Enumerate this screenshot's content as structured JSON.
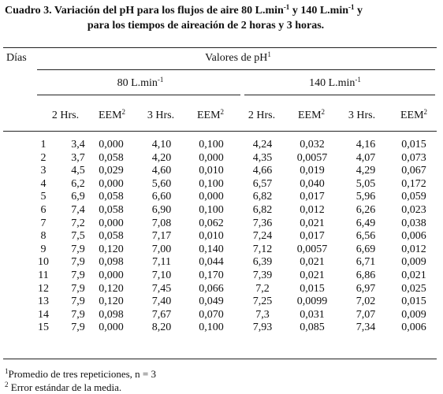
{
  "title": {
    "line1": [
      "Cuadro 3. Variación del pH para los flujos de aire 80 L.min",
      "-1",
      " y 140 L.min",
      "-1",
      " y"
    ],
    "line2": "para los tiempos de aireación de 2 horas y 3 horas."
  },
  "table": {
    "header": {
      "dias": "Días",
      "group": {
        "text": "Valores de pH",
        "sup": "1"
      },
      "subgroups": [
        {
          "text": "80 L.min",
          "sup": "-1"
        },
        {
          "text": "140 L.min",
          "sup": "-1"
        }
      ],
      "columns": [
        {
          "text": "2 Hrs."
        },
        {
          "text": "EEM",
          "sup": "2"
        },
        {
          "text": "3 Hrs."
        },
        {
          "text": "EEM",
          "sup": "2"
        },
        {
          "text": "2 Hrs."
        },
        {
          "text": "EEM",
          "sup": "2"
        },
        {
          "text": "3 Hrs."
        },
        {
          "text": "EEM",
          "sup": "2"
        }
      ]
    },
    "rows": [
      [
        "1",
        "3,4",
        "0,000",
        "4,10",
        "0,100",
        "4,24",
        "0,032",
        "4,16",
        "0,015"
      ],
      [
        "2",
        "3,7",
        "0,058",
        "4,20",
        "0,000",
        "4,35",
        "0,0057",
        "4,07",
        "0,073"
      ],
      [
        "3",
        "4,5",
        "0,029",
        "4,60",
        "0,010",
        "4,66",
        "0,019",
        "4,29",
        "0,067"
      ],
      [
        "4",
        "6,2",
        "0,000",
        "5,60",
        "0,100",
        "6,57",
        "0,040",
        "5,05",
        "0,172"
      ],
      [
        "5",
        "6,9",
        "0,058",
        "6,60",
        "0,000",
        "6,82",
        "0,017",
        "5,96",
        "0,059"
      ],
      [
        "6",
        "7,4",
        "0,058",
        "6,90",
        "0,100",
        "6,82",
        "0,012",
        "6,26",
        "0,023"
      ],
      [
        "7",
        "7,2",
        "0,000",
        "7,08",
        "0,062",
        "7,36",
        "0,021",
        "6,49",
        "0,038"
      ],
      [
        "8",
        "7,5",
        "0,058",
        "7,17",
        "0,010",
        "7,24",
        "0,017",
        "6,56",
        "0,006"
      ],
      [
        "9",
        "7,9",
        "0,120",
        "7,00",
        "0,140",
        "7,12",
        "0,0057",
        "6,69",
        "0,012"
      ],
      [
        "10",
        "7,9",
        "0,098",
        "7,11",
        "0,044",
        "6,39",
        "0,021",
        "6,71",
        "0,009"
      ],
      [
        "11",
        "7,9",
        "0,000",
        "7,10",
        "0,170",
        "7,39",
        "0,021",
        "6,86",
        "0,021"
      ],
      [
        "12",
        "7,9",
        "0,120",
        "7,45",
        "0,066",
        "7,2",
        "0,015",
        "6,97",
        "0,025"
      ],
      [
        "13",
        "7,9",
        "0,120",
        "7,40",
        "0,049",
        "7,25",
        "0,0099",
        "7,02",
        "0,015"
      ],
      [
        "14",
        "7,9",
        "0,098",
        "7,67",
        "0,070",
        "7,3",
        "0,031",
        "7,07",
        "0,009"
      ],
      [
        "15",
        "7,9",
        "0,000",
        "8,20",
        "0,100",
        "7,93",
        "0,085",
        "7,34",
        "0,006"
      ]
    ]
  },
  "footnotes": [
    {
      "sup": "1",
      "text": "Promedio de tres repeticiones, n = 3"
    },
    {
      "sup": "2",
      "text": " Error estándar de la media."
    }
  ]
}
